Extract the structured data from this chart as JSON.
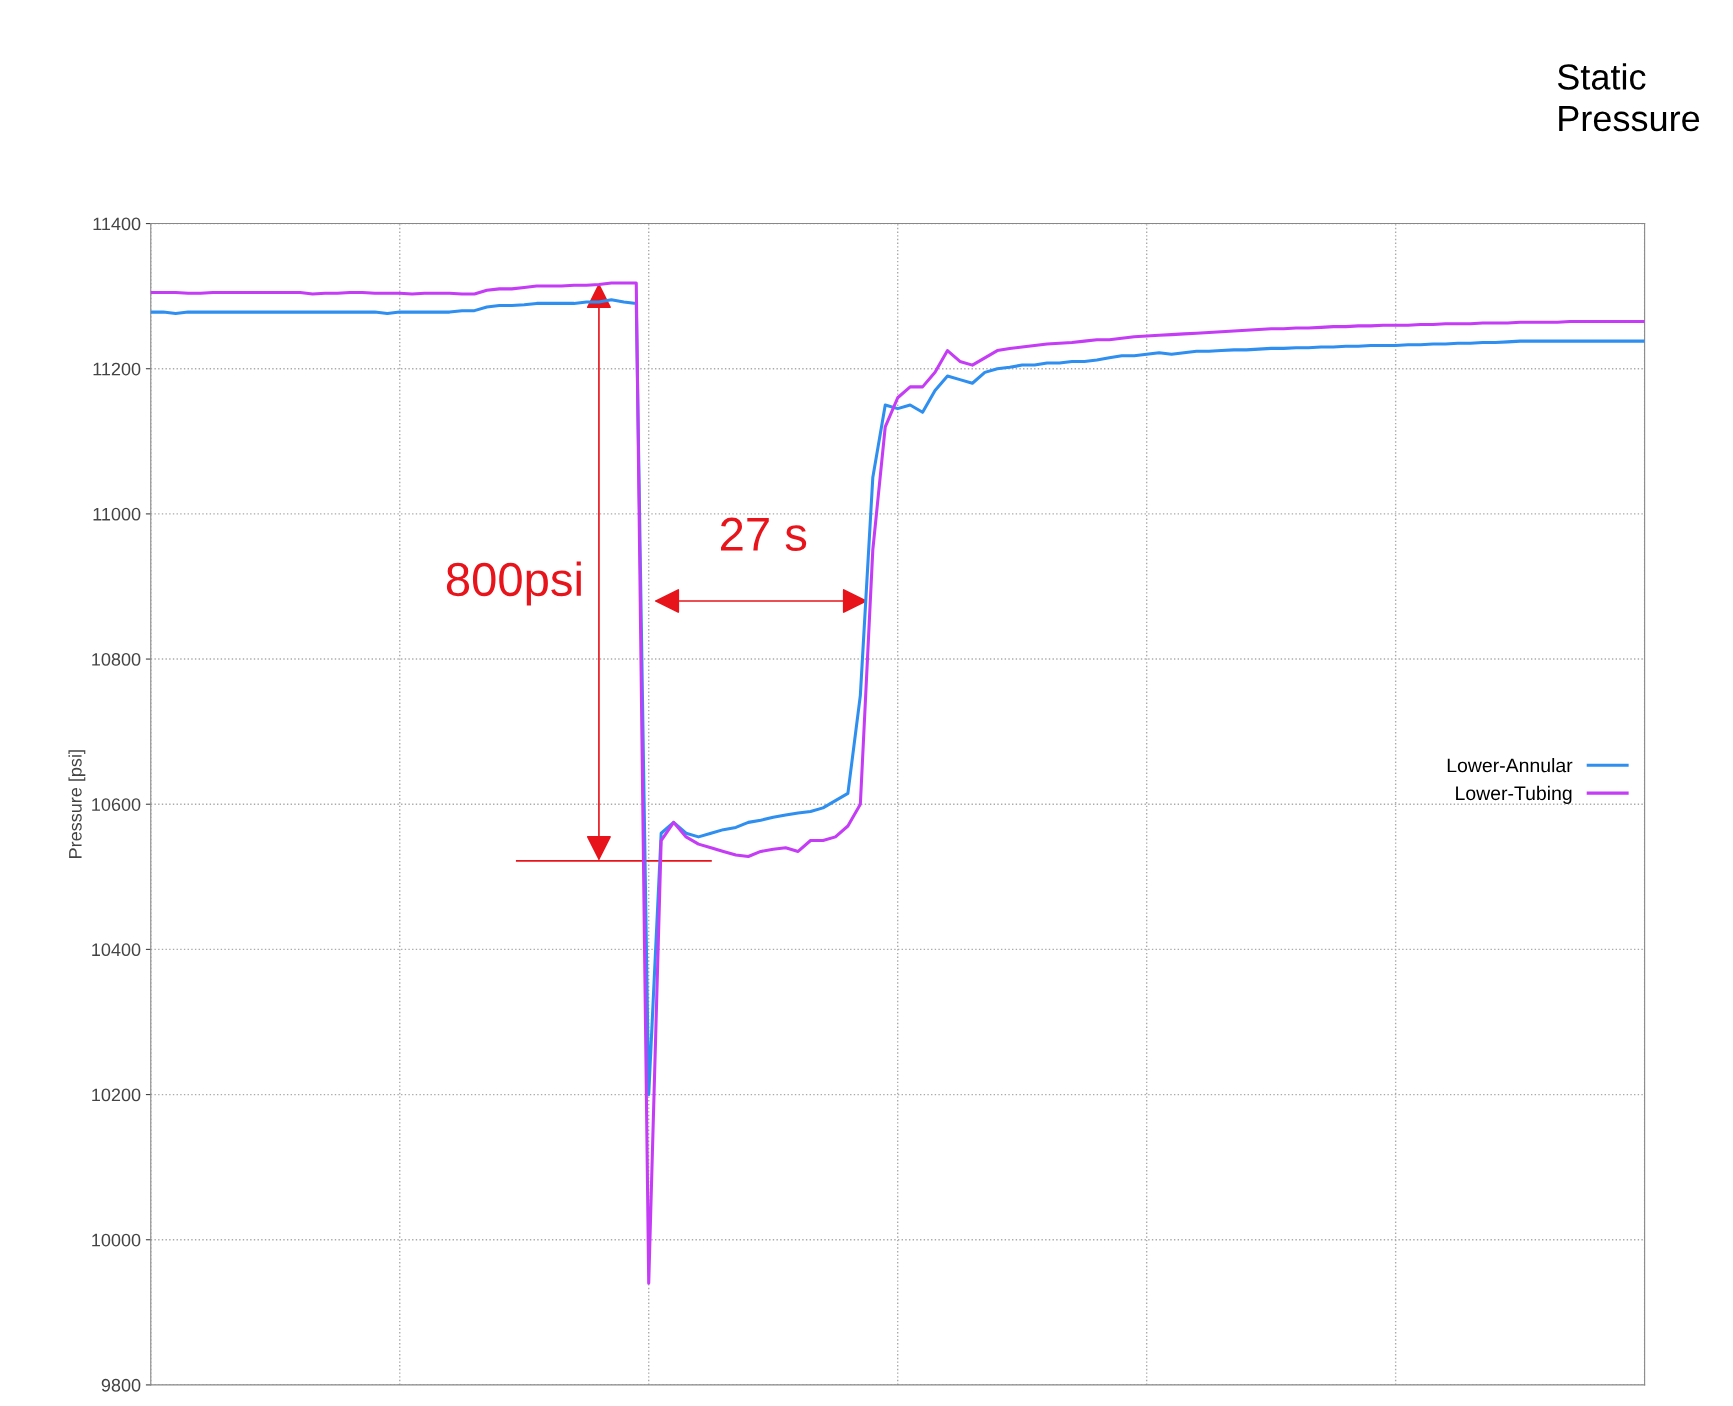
{
  "chart_data": {
    "type": "line",
    "title": "Static Pressure",
    "ylabel": "Pressure [psi]",
    "categories": [
      null,
      null,
      null,
      null,
      null,
      null,
      null,
      null,
      null,
      null,
      null,
      null,
      null,
      null,
      null,
      null,
      null,
      null,
      null,
      null,
      null,
      null,
      null,
      null,
      null,
      null,
      null,
      null,
      null,
      null,
      null,
      null,
      null,
      null,
      null,
      null,
      null,
      null,
      null,
      null,
      null,
      null,
      null,
      null,
      null,
      null,
      null,
      null,
      null,
      null,
      null,
      null,
      null,
      null,
      null,
      null,
      null,
      null,
      null,
      null,
      null,
      null,
      null,
      null,
      null,
      null,
      null,
      null,
      null,
      null,
      null,
      null,
      null,
      null,
      null,
      null,
      null,
      null,
      null,
      null,
      null,
      null,
      null,
      null,
      null,
      null,
      null,
      null,
      null,
      null,
      null,
      null,
      null,
      null,
      null,
      null,
      null,
      null,
      null,
      null,
      null,
      null,
      null,
      null,
      null,
      null,
      null,
      null,
      null,
      null,
      null,
      null,
      null,
      null,
      null,
      null,
      null,
      null,
      null,
      null,
      null
    ],
    "series": [
      {
        "name": "Lower-Annular",
        "color": "#2e8ff0",
        "values": [
          11278,
          11278,
          11276,
          11278,
          11278,
          11278,
          11278,
          11278,
          11278,
          11278,
          11278,
          11278,
          11278,
          11278,
          11278,
          11278,
          11278,
          11278,
          11278,
          11276,
          11278,
          11278,
          11278,
          11278,
          11278,
          11280,
          11280,
          11285,
          11287,
          11287,
          11288,
          11290,
          11290,
          11290,
          11290,
          11292,
          11292,
          11295,
          11292,
          11290,
          10200,
          10560,
          10575,
          10560,
          10555,
          10560,
          10565,
          10568,
          10575,
          10578,
          10582,
          10585,
          10588,
          10590,
          10595,
          10605,
          10615,
          10750,
          11050,
          11150,
          11145,
          11150,
          11140,
          11170,
          11190,
          11185,
          11180,
          11195,
          11200,
          11202,
          11205,
          11205,
          11208,
          11208,
          11210,
          11210,
          11212,
          11215,
          11218,
          11218,
          11220,
          11222,
          11220,
          11222,
          11224,
          11224,
          11225,
          11226,
          11226,
          11227,
          11228,
          11228,
          11229,
          11229,
          11230,
          11230,
          11231,
          11231,
          11232,
          11232,
          11232,
          11233,
          11233,
          11234,
          11234,
          11235,
          11235,
          11236,
          11236,
          11237,
          11238,
          11238,
          11238,
          11238,
          11238,
          11238,
          11238,
          11238,
          11238,
          11238,
          11238
        ]
      },
      {
        "name": "Lower-Tubing",
        "color": "#c43cf5",
        "values": [
          11305,
          11305,
          11305,
          11304,
          11304,
          11305,
          11305,
          11305,
          11305,
          11305,
          11305,
          11305,
          11305,
          11303,
          11304,
          11304,
          11305,
          11305,
          11304,
          11304,
          11304,
          11303,
          11304,
          11304,
          11304,
          11303,
          11303,
          11308,
          11310,
          11310,
          11312,
          11314,
          11314,
          11314,
          11315,
          11315,
          11316,
          11318,
          11318,
          11318,
          9940,
          10550,
          10575,
          10555,
          10545,
          10540,
          10535,
          10530,
          10528,
          10535,
          10538,
          10540,
          10535,
          10550,
          10550,
          10555,
          10570,
          10600,
          10950,
          11120,
          11160,
          11175,
          11175,
          11195,
          11225,
          11210,
          11205,
          11215,
          11225,
          11228,
          11230,
          11232,
          11234,
          11235,
          11236,
          11238,
          11240,
          11240,
          11242,
          11244,
          11245,
          11246,
          11247,
          11248,
          11249,
          11250,
          11251,
          11252,
          11253,
          11254,
          11255,
          11255,
          11256,
          11256,
          11257,
          11258,
          11258,
          11259,
          11259,
          11260,
          11260,
          11260,
          11261,
          11261,
          11262,
          11262,
          11262,
          11263,
          11263,
          11263,
          11264,
          11264,
          11264,
          11264,
          11265,
          11265,
          11265,
          11265,
          11265,
          11265,
          11265
        ]
      }
    ],
    "ylim": [
      9800,
      11400
    ],
    "yticks": [
      9800,
      10000,
      10200,
      10400,
      10600,
      10800,
      11000,
      11200,
      11400
    ],
    "grid": true,
    "legend": "right",
    "marker": "none",
    "line_style": "solid",
    "annotations": [
      "800psi",
      "27 s"
    ]
  }
}
